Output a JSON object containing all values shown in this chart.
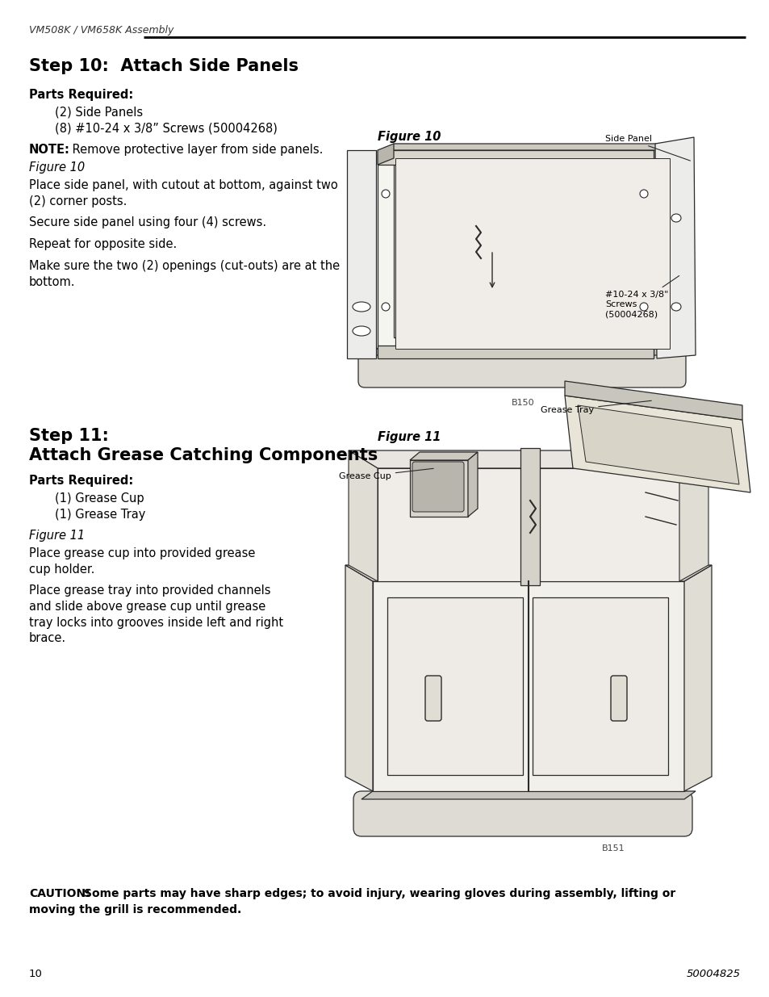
{
  "header_text": "VM508K / VM658K Assembly",
  "step10_title": "Step 10:  Attach Side Panels",
  "step10_parts_header": "Parts Required:",
  "step10_parts": [
    "(2) Side Panels",
    "(8) #10-24 x 3/8” Screws (50004268)"
  ],
  "step10_note_bold": "NOTE:",
  "step10_note_rest": " Remove protective layer from side panels.",
  "step10_fig_label": "Figure 10",
  "step10_instructions": [
    "Place side panel, with cutout at bottom, against two\n(2) corner posts.",
    "Secure side panel using four (4) screws.",
    "Repeat for opposite side.",
    "Make sure the two (2) openings (cut-outs) are at the\nbottom."
  ],
  "fig10_label": "Figure 10",
  "fig10_annot_panel": "Side Panel",
  "fig10_annot_screw": "#10-24 x 3/8\"\nScrews\n(50004268)",
  "fig10_part_label": "B150",
  "step11_title_line1": "Step 11:",
  "step11_title_line2": "Attach Grease Catching Components",
  "step11_parts_header": "Parts Required:",
  "step11_parts": [
    "(1) Grease Cup",
    "(1) Grease Tray"
  ],
  "step11_fig_label": "Figure 11",
  "step11_instructions": [
    "Place grease cup into provided grease\ncup holder.",
    "Place grease tray into provided channels\nand slide above grease cup until grease\ntray locks into grooves inside left and right\nbrace."
  ],
  "fig11_label": "Figure 11",
  "fig11_annot_tray": "Grease Tray",
  "fig11_annot_cup": "Grease Cup",
  "fig11_part_label": "B151",
  "caution_bold": "CAUTION:",
  "caution_rest": " Some parts may have sharp edges; to avoid injury, wearing gloves during assembly, lifting or\nmoving the grill is recommended.",
  "page_num": "10",
  "page_part": "50004825",
  "bg_color": "#ffffff",
  "text_color": "#000000",
  "gray_line": "#222222",
  "fig_line": "#2a2a2a",
  "fig_fill_light": "#f5f5f0",
  "fig_fill_mid": "#e8e6e0",
  "fig_fill_dark": "#d0cdc5"
}
